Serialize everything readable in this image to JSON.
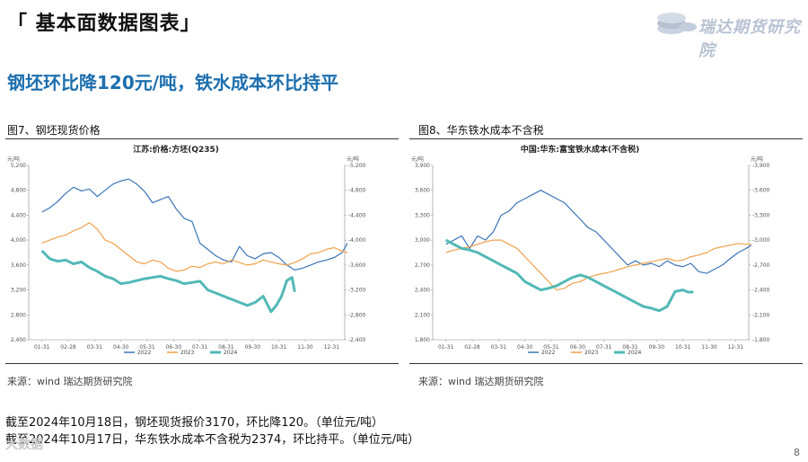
{
  "header": {
    "title": "「 基本面数据图表」"
  },
  "logo": {
    "text": "瑞达期货研究院",
    "icon": "coins-logo-icon"
  },
  "headline": "钢坯环比降120元/吨，铁水成本环比持平",
  "figures": [
    {
      "title": "图7、钢坯现货价格",
      "source": "来源：wind    瑞达期货研究院"
    },
    {
      "title": "图8、华东铁水成本不含税",
      "source": "来源：wind    瑞达期货研究院"
    }
  ],
  "notes": [
    "截至2024年10月18日，钢坯现货报价3170，环比降120。（单位元/吨）",
    "截至2024年10月17日，华东铁水成本不含税为2374，环比持平。（单位元/吨）"
  ],
  "watermark": "大数据",
  "page_number": "8",
  "colors": {
    "s2022": "#3a75b6",
    "s2023": "#f0a14a",
    "s2024": "#52b9b7"
  },
  "chart_data": [
    {
      "type": "line",
      "title": "江苏:价格:方坯(Q235)",
      "unit_left": "元/吨",
      "unit_right": "元/吨",
      "categories": [
        "01-31",
        "02-28",
        "03-31",
        "04-30",
        "05-31",
        "06-30",
        "07-31",
        "08-31",
        "09-30",
        "10-31",
        "11-30",
        "12-31"
      ],
      "ylim": [
        2400,
        5200
      ],
      "yticks": [
        "2,400",
        "2,800",
        "3,200",
        "3,600",
        "4,000",
        "4,400",
        "4,800",
        "5,200"
      ],
      "series": [
        {
          "name": "2022",
          "x": [
            0,
            0.3,
            0.6,
            0.9,
            1.2,
            1.5,
            1.8,
            2.1,
            2.4,
            2.7,
            3.0,
            3.3,
            3.6,
            3.9,
            4.2,
            4.5,
            4.8,
            5.1,
            5.4,
            5.7,
            6.0,
            6.3,
            6.6,
            6.9,
            7.2,
            7.5,
            7.8,
            8.1,
            8.4,
            8.7,
            9.0,
            9.3,
            9.6,
            9.9,
            10.2,
            10.5,
            10.8,
            11.1,
            11.4,
            11.6
          ],
          "values": [
            4450,
            4520,
            4620,
            4750,
            4850,
            4790,
            4820,
            4700,
            4800,
            4900,
            4950,
            4980,
            4900,
            4780,
            4600,
            4650,
            4700,
            4500,
            4350,
            4300,
            3950,
            3850,
            3750,
            3680,
            3650,
            3900,
            3750,
            3700,
            3780,
            3800,
            3720,
            3600,
            3520,
            3550,
            3600,
            3650,
            3680,
            3720,
            3800,
            3950
          ]
        },
        {
          "name": "2023",
          "x": [
            0,
            0.3,
            0.6,
            0.9,
            1.2,
            1.5,
            1.8,
            2.1,
            2.4,
            2.7,
            3.0,
            3.3,
            3.6,
            3.9,
            4.2,
            4.5,
            4.8,
            5.1,
            5.4,
            5.7,
            6.0,
            6.3,
            6.6,
            6.9,
            7.2,
            7.5,
            7.8,
            8.1,
            8.4,
            8.7,
            9.0,
            9.3,
            9.6,
            9.9,
            10.2,
            10.5,
            10.8,
            11.1,
            11.4,
            11.6
          ],
          "values": [
            3950,
            4000,
            4050,
            4080,
            4150,
            4200,
            4280,
            4180,
            4000,
            3950,
            3850,
            3750,
            3650,
            3620,
            3680,
            3650,
            3550,
            3500,
            3520,
            3580,
            3560,
            3620,
            3650,
            3620,
            3680,
            3640,
            3600,
            3620,
            3680,
            3650,
            3620,
            3600,
            3640,
            3700,
            3780,
            3800,
            3850,
            3880,
            3820,
            3800
          ]
        },
        {
          "name": "2024",
          "x": [
            0,
            0.3,
            0.6,
            0.9,
            1.2,
            1.5,
            1.8,
            2.1,
            2.4,
            2.7,
            3.0,
            3.3,
            3.6,
            3.9,
            4.2,
            4.5,
            4.8,
            5.1,
            5.4,
            5.7,
            6.0,
            6.3,
            6.6,
            6.9,
            7.2,
            7.5,
            7.8,
            8.1,
            8.4,
            8.7,
            8.9,
            9.1,
            9.3,
            9.5,
            9.6
          ],
          "values": [
            3830,
            3700,
            3660,
            3680,
            3620,
            3650,
            3560,
            3500,
            3420,
            3380,
            3300,
            3320,
            3350,
            3380,
            3400,
            3420,
            3380,
            3350,
            3300,
            3320,
            3340,
            3200,
            3150,
            3100,
            3050,
            3000,
            2950,
            3000,
            3100,
            2850,
            2950,
            3100,
            3350,
            3400,
            3170
          ]
        }
      ]
    },
    {
      "type": "line",
      "title": "中国:华东:富宝铁水成本(不含税)",
      "unit_left": "元/吨",
      "unit_right": "元/吨",
      "categories": [
        "01-31",
        "02-28",
        "03-31",
        "04-30",
        "05-31",
        "06-30",
        "07-31",
        "08-31",
        "09-30",
        "10-31",
        "11-30",
        "12-31"
      ],
      "ylim": [
        1800,
        3900
      ],
      "yticks": [
        "1,800",
        "2,100",
        "2,400",
        "2,700",
        "3,000",
        "3,300",
        "3,600",
        "3,900"
      ],
      "series": [
        {
          "name": "2022",
          "x": [
            0,
            0.3,
            0.6,
            0.9,
            1.2,
            1.5,
            1.8,
            2.1,
            2.4,
            2.7,
            3.0,
            3.3,
            3.6,
            3.9,
            4.2,
            4.5,
            4.8,
            5.1,
            5.4,
            5.7,
            6.0,
            6.3,
            6.6,
            6.9,
            7.2,
            7.5,
            7.8,
            8.1,
            8.4,
            8.7,
            9.0,
            9.3,
            9.6,
            9.9,
            10.2,
            10.5,
            10.8,
            11.1,
            11.4,
            11.6
          ],
          "values": [
            2950,
            3000,
            3050,
            2900,
            3050,
            3000,
            3100,
            3300,
            3350,
            3450,
            3500,
            3550,
            3600,
            3550,
            3500,
            3450,
            3350,
            3250,
            3150,
            3100,
            3000,
            2900,
            2800,
            2700,
            2750,
            2700,
            2720,
            2680,
            2750,
            2700,
            2680,
            2720,
            2620,
            2600,
            2650,
            2700,
            2780,
            2850,
            2900,
            2940
          ]
        },
        {
          "name": "2023",
          "x": [
            0,
            0.3,
            0.6,
            0.9,
            1.2,
            1.5,
            1.8,
            2.1,
            2.4,
            2.7,
            3.0,
            3.3,
            3.6,
            3.9,
            4.2,
            4.5,
            4.8,
            5.1,
            5.4,
            5.7,
            6.0,
            6.3,
            6.6,
            6.9,
            7.2,
            7.5,
            7.8,
            8.1,
            8.4,
            8.7,
            9.0,
            9.3,
            9.6,
            9.9,
            10.2,
            10.5,
            10.8,
            11.1,
            11.4,
            11.6
          ],
          "values": [
            2850,
            2880,
            2900,
            2920,
            2950,
            2980,
            3000,
            3000,
            2950,
            2900,
            2800,
            2700,
            2600,
            2500,
            2400,
            2420,
            2480,
            2500,
            2550,
            2580,
            2600,
            2620,
            2650,
            2680,
            2700,
            2720,
            2740,
            2760,
            2780,
            2750,
            2760,
            2800,
            2820,
            2850,
            2900,
            2920,
            2940,
            2960,
            2950,
            2950
          ]
        },
        {
          "name": "2024",
          "x": [
            0,
            0.3,
            0.6,
            0.9,
            1.2,
            1.5,
            1.8,
            2.1,
            2.4,
            2.7,
            3.0,
            3.3,
            3.6,
            3.9,
            4.2,
            4.5,
            4.8,
            5.1,
            5.4,
            5.7,
            6.0,
            6.3,
            6.6,
            6.9,
            7.2,
            7.5,
            7.8,
            8.1,
            8.4,
            8.7,
            9.0,
            9.2,
            9.4
          ],
          "values": [
            3000,
            2950,
            2900,
            2880,
            2850,
            2800,
            2750,
            2700,
            2650,
            2600,
            2500,
            2450,
            2400,
            2420,
            2450,
            2500,
            2550,
            2580,
            2550,
            2500,
            2450,
            2400,
            2350,
            2300,
            2250,
            2200,
            2180,
            2150,
            2200,
            2380,
            2400,
            2374,
            2374
          ]
        }
      ]
    }
  ]
}
